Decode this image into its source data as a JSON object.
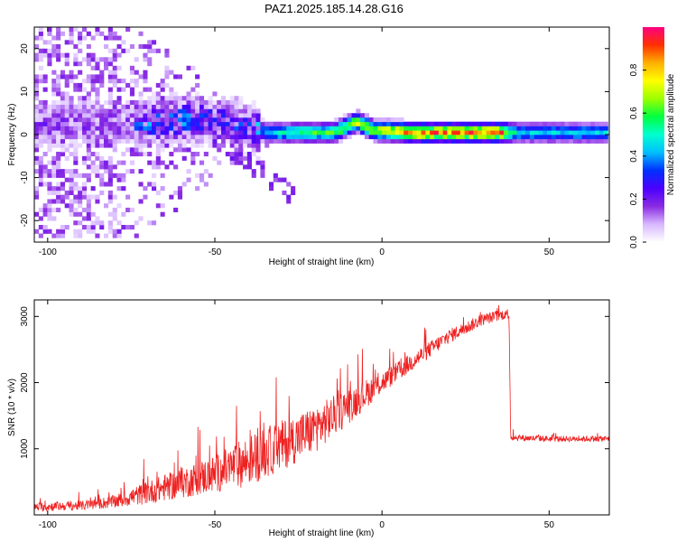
{
  "figure": {
    "title": "PAZ1.2025.185.14.28.G16"
  },
  "chart_data": [
    {
      "type": "heatmap",
      "xlabel": "Height of straight line (km)",
      "ylabel": "Frequency (Hz)",
      "xlim": [
        -104,
        68
      ],
      "ylim": [
        -25,
        25
      ],
      "xticks": [
        -100,
        -50,
        0,
        50
      ],
      "yticks": [
        -20,
        -10,
        0,
        10,
        20
      ],
      "grid": false,
      "colorbar": {
        "label": "Normalized spectral amplitude",
        "range": [
          0,
          1
        ],
        "ticks": [
          0.0,
          0.2,
          0.4,
          0.6,
          0.8
        ],
        "colormap": [
          "#ffffff",
          "#d8b8ff",
          "#8a2be2",
          "#4b00ff",
          "#0030ff",
          "#00bfff",
          "#00ffd0",
          "#00ff40",
          "#9cff00",
          "#ffff00",
          "#ffb000",
          "#ff3000",
          "#ff0080"
        ]
      },
      "ridge": {
        "description_points": [
          {
            "x": -75,
            "y": 2,
            "amp": 0.3
          },
          {
            "x": -60,
            "y": 3,
            "amp": 0.3
          },
          {
            "x": -50,
            "y": 3,
            "amp": 0.25
          },
          {
            "x": -40,
            "y": 1,
            "amp": 0.25
          },
          {
            "x": -35,
            "y": 0,
            "amp": 0.45
          },
          {
            "x": -25,
            "y": 0,
            "amp": 0.55
          },
          {
            "x": -15,
            "y": 0,
            "amp": 0.6
          },
          {
            "x": -8,
            "y": 2.5,
            "amp": 0.7
          },
          {
            "x": -3,
            "y": 0.5,
            "amp": 0.7
          },
          {
            "x": 10,
            "y": 0,
            "amp": 0.85
          },
          {
            "x": 35,
            "y": 0,
            "amp": 0.85
          },
          {
            "x": 40,
            "y": 0,
            "amp": 0.45
          },
          {
            "x": 68,
            "y": 0,
            "amp": 0.45
          }
        ]
      }
    },
    {
      "type": "line",
      "xlabel": "Height of straight line (km)",
      "ylabel": "SNR (10 * v/v)",
      "xlim": [
        -104,
        68
      ],
      "ylim": [
        0,
        3250
      ],
      "xticks": [
        -100,
        -50,
        0,
        50
      ],
      "yticks": [
        1000,
        2000,
        3000
      ],
      "grid": false,
      "series": [
        {
          "color": "#ee2020",
          "envelope": [
            {
              "x": -104,
              "mean": 120,
              "spread": 120
            },
            {
              "x": -90,
              "mean": 140,
              "spread": 130
            },
            {
              "x": -80,
              "mean": 200,
              "spread": 180
            },
            {
              "x": -70,
              "mean": 340,
              "spread": 320
            },
            {
              "x": -60,
              "mean": 480,
              "spread": 420
            },
            {
              "x": -50,
              "mean": 620,
              "spread": 520
            },
            {
              "x": -40,
              "mean": 820,
              "spread": 700
            },
            {
              "x": -30,
              "mean": 1050,
              "spread": 700
            },
            {
              "x": -20,
              "mean": 1300,
              "spread": 650
            },
            {
              "x": -10,
              "mean": 1650,
              "spread": 500
            },
            {
              "x": 0,
              "mean": 2000,
              "spread": 300
            },
            {
              "x": 10,
              "mean": 2350,
              "spread": 250
            },
            {
              "x": 20,
              "mean": 2700,
              "spread": 200
            },
            {
              "x": 30,
              "mean": 2950,
              "spread": 160
            },
            {
              "x": 38,
              "mean": 3050,
              "spread": 140
            },
            {
              "x": 38.5,
              "mean": 1170,
              "spread": 90
            },
            {
              "x": 50,
              "mean": 1150,
              "spread": 80
            },
            {
              "x": 68,
              "mean": 1150,
              "spread": 80
            }
          ]
        }
      ]
    }
  ]
}
